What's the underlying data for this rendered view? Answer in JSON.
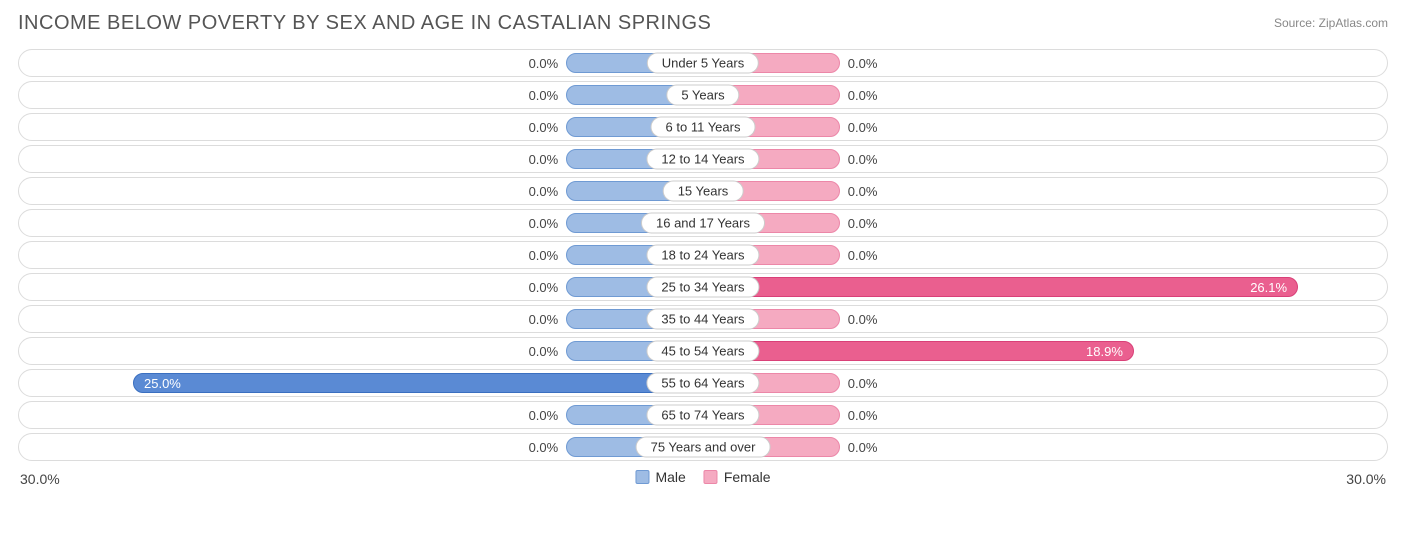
{
  "title": "INCOME BELOW POVERTY BY SEX AND AGE IN CASTALIAN SPRINGS",
  "source": "Source: ZipAtlas.com",
  "axis_max": 30.0,
  "axis_label_left": "30.0%",
  "axis_label_right": "30.0%",
  "min_bar_pct": 20.0,
  "colors": {
    "male_fill": "#9ebce4",
    "male_border": "#6f9ad3",
    "male_strong_fill": "#5a8ad4",
    "male_strong_border": "#3a6fc0",
    "female_fill": "#f5aac1",
    "female_border": "#ec87a8",
    "female_strong_fill": "#ea5f8f",
    "female_strong_border": "#d94078",
    "track_border": "#dcdcdc",
    "text": "#444444",
    "title_color": "#555555",
    "source_color": "#888888",
    "cat_border": "#cccccc",
    "background": "#ffffff"
  },
  "legend": {
    "male": "Male",
    "female": "Female"
  },
  "categories": [
    {
      "label": "Under 5 Years",
      "male": 0.0,
      "female": 0.0
    },
    {
      "label": "5 Years",
      "male": 0.0,
      "female": 0.0
    },
    {
      "label": "6 to 11 Years",
      "male": 0.0,
      "female": 0.0
    },
    {
      "label": "12 to 14 Years",
      "male": 0.0,
      "female": 0.0
    },
    {
      "label": "15 Years",
      "male": 0.0,
      "female": 0.0
    },
    {
      "label": "16 and 17 Years",
      "male": 0.0,
      "female": 0.0
    },
    {
      "label": "18 to 24 Years",
      "male": 0.0,
      "female": 0.0
    },
    {
      "label": "25 to 34 Years",
      "male": 0.0,
      "female": 26.1
    },
    {
      "label": "35 to 44 Years",
      "male": 0.0,
      "female": 0.0
    },
    {
      "label": "45 to 54 Years",
      "male": 0.0,
      "female": 18.9
    },
    {
      "label": "55 to 64 Years",
      "male": 25.0,
      "female": 0.0
    },
    {
      "label": "65 to 74 Years",
      "male": 0.0,
      "female": 0.0
    },
    {
      "label": "75 Years and over",
      "male": 0.0,
      "female": 0.0
    }
  ]
}
